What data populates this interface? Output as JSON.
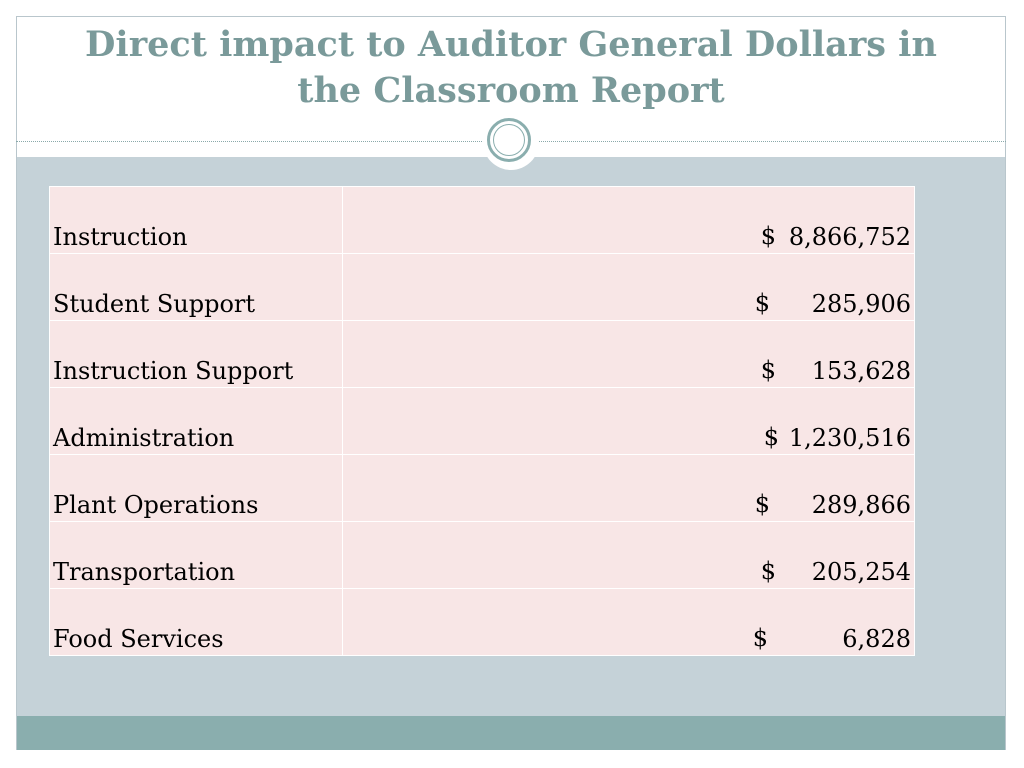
{
  "slide": {
    "title_line1": "Direct impact to Auditor General Dollars in",
    "title_line2": "the Classroom Report",
    "colors": {
      "title": "#7a9a9a",
      "panel": "#c5d2d8",
      "footer": "#8aaeae",
      "table_fill": "#f8e6e6"
    }
  },
  "table": {
    "rows": [
      {
        "category": "Instruction",
        "currency": "$",
        "amount": "8,866,752"
      },
      {
        "category": "Student Support",
        "currency": "$",
        "amount": "285,906"
      },
      {
        "category": "Instruction Support",
        "currency": "$",
        "amount": "153,628"
      },
      {
        "category": "Administration",
        "currency": "$",
        "amount": "1,230,516"
      },
      {
        "category": "Plant Operations",
        "currency": "$",
        "amount": "289,866"
      },
      {
        "category": "Transportation",
        "currency": "$",
        "amount": "205,254"
      },
      {
        "category": "Food Services",
        "currency": "$",
        "amount": "6,828"
      }
    ]
  }
}
